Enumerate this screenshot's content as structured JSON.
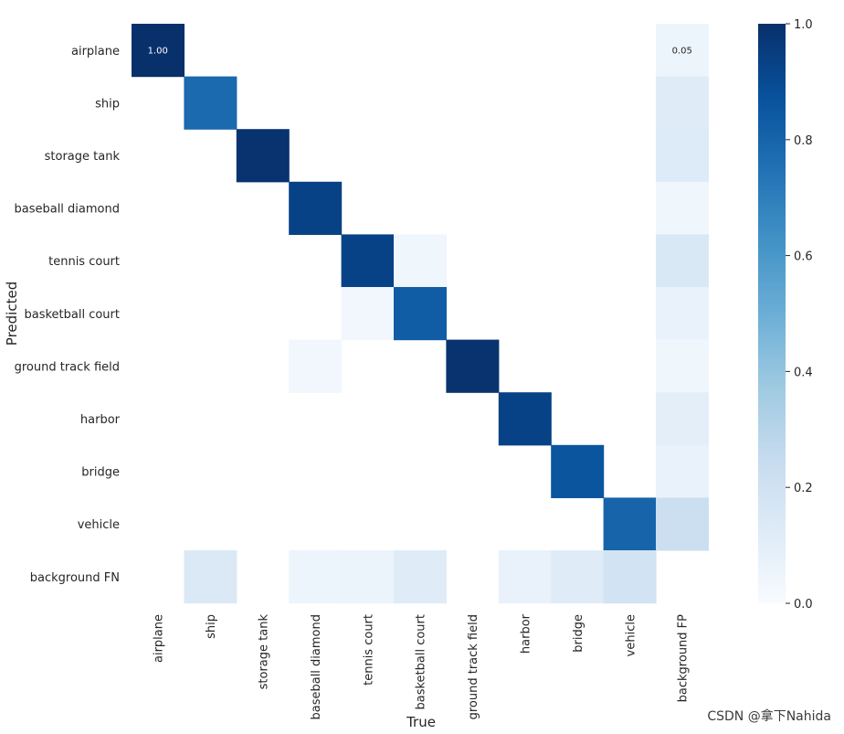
{
  "chart_data": {
    "type": "heatmap",
    "ylabel": "Predicted",
    "xlabel": "True",
    "rows": [
      "airplane",
      "ship",
      "storage tank",
      "baseball diamond",
      "tennis court",
      "basketball court",
      "ground track field",
      "harbor",
      "bridge",
      "vehicle",
      "background FN"
    ],
    "columns": [
      "airplane",
      "ship",
      "storage tank",
      "baseball diamond",
      "tennis court",
      "basketball court",
      "ground track field",
      "harbor",
      "bridge",
      "vehicle",
      "background FP"
    ],
    "values": [
      [
        1.0,
        null,
        null,
        null,
        null,
        null,
        null,
        null,
        null,
        null,
        0.05
      ],
      [
        null,
        0.78,
        null,
        null,
        null,
        null,
        null,
        null,
        null,
        null,
        0.12
      ],
      [
        null,
        null,
        0.99,
        null,
        null,
        null,
        null,
        null,
        null,
        null,
        0.13
      ],
      [
        null,
        null,
        null,
        0.93,
        null,
        null,
        null,
        null,
        null,
        null,
        0.04
      ],
      [
        null,
        null,
        null,
        null,
        0.93,
        0.04,
        null,
        null,
        null,
        null,
        0.15
      ],
      [
        null,
        null,
        null,
        null,
        0.03,
        0.83,
        null,
        null,
        null,
        null,
        0.07
      ],
      [
        null,
        null,
        null,
        0.03,
        null,
        null,
        0.99,
        null,
        null,
        null,
        0.04
      ],
      [
        null,
        null,
        null,
        null,
        null,
        null,
        null,
        0.93,
        null,
        null,
        0.1
      ],
      [
        null,
        null,
        null,
        null,
        null,
        null,
        null,
        null,
        0.86,
        null,
        0.07
      ],
      [
        null,
        null,
        null,
        null,
        null,
        null,
        null,
        null,
        null,
        0.8,
        0.22
      ],
      [
        null,
        0.14,
        null,
        0.05,
        0.06,
        0.12,
        null,
        0.07,
        0.12,
        0.19,
        null
      ]
    ],
    "annotations": [
      {
        "row": 0,
        "col": 0,
        "text": "1.00"
      },
      {
        "row": 0,
        "col": 10,
        "text": "0.05"
      }
    ],
    "colorbar": {
      "range": [
        0.0,
        1.0
      ],
      "ticks": [
        0.0,
        0.2,
        0.4,
        0.6,
        0.8,
        1.0
      ],
      "tick_labels": [
        "0.0",
        "0.2",
        "0.4",
        "0.6",
        "0.8",
        "1.0"
      ],
      "colormap": "Blues"
    }
  },
  "watermark": "CSDN @拿下Nahida"
}
